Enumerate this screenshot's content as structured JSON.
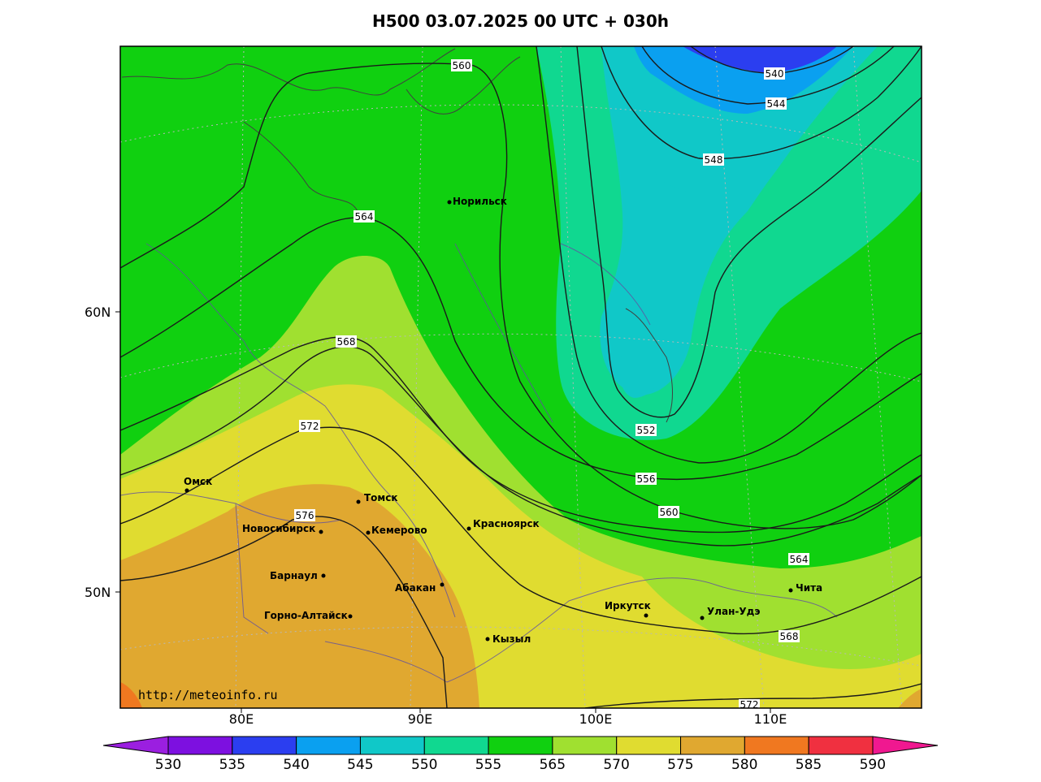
{
  "title": "H500  03.07.2025 00 UTC + 030h",
  "credit": "http://meteoinfo.ru",
  "lat_labels": [
    "60N",
    "50N"
  ],
  "lon_labels": [
    "80E",
    "90E",
    "100E",
    "110E"
  ],
  "isoline_labels": [
    "560",
    "564",
    "568",
    "572",
    "576",
    "540",
    "544",
    "548",
    "552",
    "556",
    "560",
    "564",
    "568",
    "572"
  ],
  "cities": [
    "Норильск",
    "Омск",
    "Томск",
    "Новосибирск",
    "Кемерово",
    "Красноярск",
    "Барнаул",
    "Абакан",
    "Горно-Алтайск",
    "Кызыл",
    "Иркутск",
    "Улан-Удэ",
    "Чита"
  ],
  "colorbar": {
    "labels": [
      "530",
      "535",
      "540",
      "545",
      "550",
      "555",
      "565",
      "570",
      "575",
      "580",
      "585",
      "590"
    ],
    "colors": [
      "#9b1fe0",
      "#7d10e0",
      "#2b3ef0",
      "#0aa0f0",
      "#10c8c8",
      "#10d890",
      "#10d010",
      "#a0e030",
      "#e0dc30",
      "#e0a830",
      "#f07820",
      "#f03040",
      "#f01890"
    ]
  }
}
